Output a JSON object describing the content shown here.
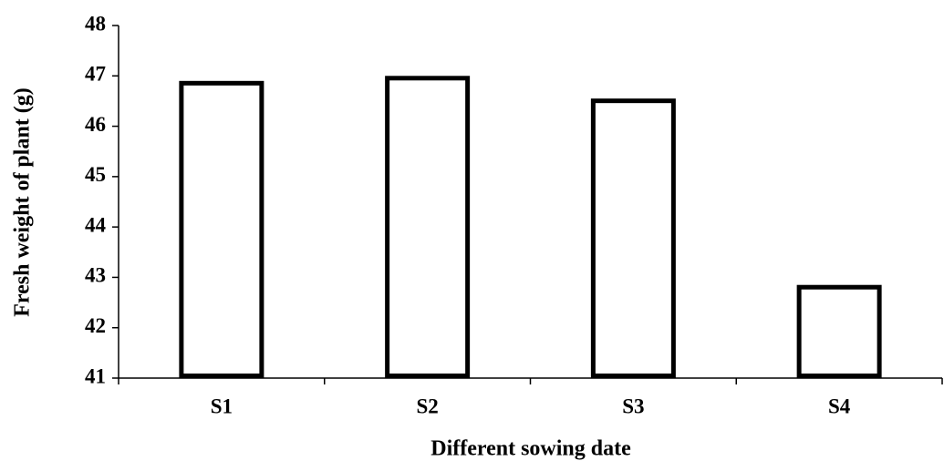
{
  "chart_data": {
    "type": "bar",
    "x_label": "Different sowing date",
    "y_label": "Fresh weight of plant (g)",
    "categories": [
      "S1",
      "S2",
      "S3",
      "S4"
    ],
    "values": [
      46.9,
      47.0,
      46.55,
      42.85
    ],
    "color": "#ffffff",
    "ylim": [
      41,
      48
    ],
    "yticks": [
      41,
      42,
      43,
      44,
      45,
      46,
      47,
      48
    ],
    "grid": false
  }
}
